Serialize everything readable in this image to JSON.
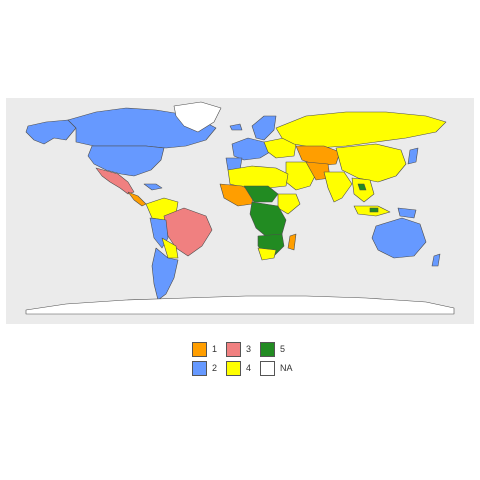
{
  "map": {
    "border_color": "#4d4d4d",
    "panel_background": "#ebebeb",
    "ocean_note": "",
    "category_colors": {
      "1": "#ff9e00",
      "2": "#6699ff",
      "3": "#f08080",
      "4": "#ffff00",
      "5": "#228b22",
      "NA": "#ffffff"
    }
  },
  "legend": {
    "items": [
      {
        "label": "1",
        "color": "#ff9e00"
      },
      {
        "label": "2",
        "color": "#6699ff"
      },
      {
        "label": "3",
        "color": "#f08080"
      },
      {
        "label": "4",
        "color": "#ffff00"
      },
      {
        "label": "5",
        "color": "#228b22"
      },
      {
        "label": "NA",
        "color": "#ffffff"
      }
    ]
  }
}
